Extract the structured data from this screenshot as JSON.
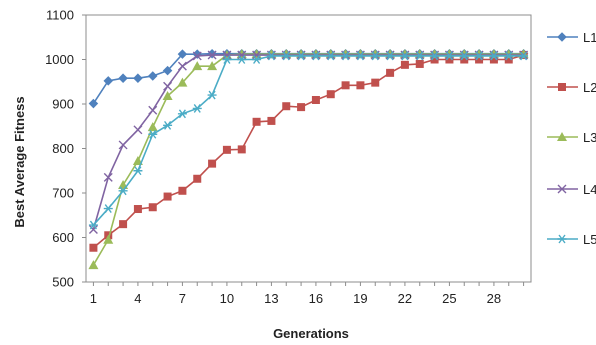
{
  "chart_data": {
    "type": "line",
    "xlabel": "Generations",
    "ylabel": "Best Average Fitness",
    "x": [
      1,
      2,
      3,
      4,
      5,
      6,
      7,
      8,
      9,
      10,
      11,
      12,
      13,
      14,
      15,
      16,
      17,
      18,
      19,
      20,
      21,
      22,
      23,
      24,
      25,
      26,
      27,
      28,
      29,
      30
    ],
    "xticks": [
      1,
      4,
      7,
      10,
      13,
      16,
      19,
      22,
      25,
      28
    ],
    "ylim": [
      500,
      1100
    ],
    "yticks": [
      500,
      600,
      700,
      800,
      900,
      1000,
      1100
    ],
    "grid": false,
    "legend_position": "right",
    "series": [
      {
        "name": "L1",
        "color": "#4f81bd",
        "marker": "diamond",
        "values": [
          901,
          952,
          958,
          958,
          963,
          975,
          1012,
          1012,
          1013,
          1013,
          1013,
          1013,
          1013,
          1013,
          1013,
          1013,
          1013,
          1013,
          1013,
          1013,
          1013,
          1013,
          1013,
          1013,
          1013,
          1013,
          1013,
          1013,
          1013,
          1013
        ]
      },
      {
        "name": "L2",
        "color": "#c0504d",
        "marker": "square",
        "values": [
          577,
          605,
          630,
          664,
          668,
          692,
          705,
          732,
          766,
          797,
          798,
          860,
          862,
          895,
          893,
          909,
          922,
          942,
          942,
          948,
          970,
          988,
          990,
          1000,
          1000,
          1000,
          1000,
          1000,
          1000,
          1010
        ]
      },
      {
        "name": "L3",
        "color": "#9bbb59",
        "marker": "triangle",
        "values": [
          538,
          595,
          718,
          772,
          848,
          918,
          948,
          985,
          985,
          1010,
          1012,
          1012,
          1012,
          1012,
          1012,
          1012,
          1012,
          1012,
          1012,
          1012,
          1012,
          1012,
          1012,
          1012,
          1012,
          1012,
          1012,
          1012,
          1012,
          1012
        ]
      },
      {
        "name": "L4",
        "color": "#8064a2",
        "marker": "x",
        "values": [
          618,
          735,
          808,
          842,
          886,
          940,
          985,
          1008,
          1010,
          1010,
          1010,
          1010,
          1010,
          1010,
          1010,
          1010,
          1010,
          1010,
          1010,
          1010,
          1010,
          1010,
          1010,
          1010,
          1010,
          1010,
          1010,
          1010,
          1010,
          1010
        ]
      },
      {
        "name": "L5",
        "color": "#4bacc6",
        "marker": "star",
        "values": [
          628,
          665,
          705,
          750,
          832,
          852,
          878,
          890,
          920,
          1000,
          1000,
          1000,
          1008,
          1008,
          1008,
          1008,
          1008,
          1008,
          1008,
          1008,
          1008,
          1008,
          1008,
          1008,
          1008,
          1008,
          1008,
          1008,
          1008,
          1008
        ]
      }
    ]
  }
}
